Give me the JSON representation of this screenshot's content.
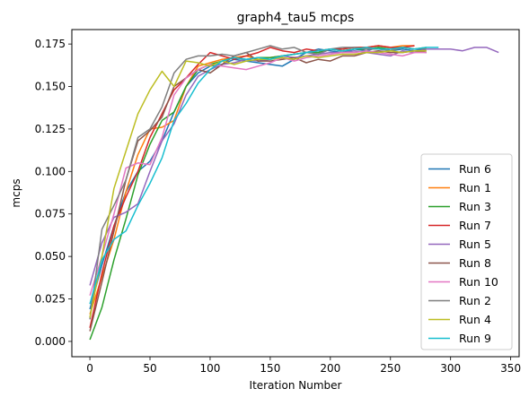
{
  "chart_data": {
    "type": "line",
    "title": "graph4_tau5 mcps",
    "xlabel": "Iteration Number",
    "ylabel": "mcps",
    "xlim": [
      -15,
      357
    ],
    "ylim": [
      -0.009,
      0.1835
    ],
    "xticks": [
      0,
      50,
      100,
      150,
      200,
      250,
      300,
      350
    ],
    "yticks": [
      0.0,
      0.025,
      0.05,
      0.075,
      0.1,
      0.125,
      0.15,
      0.175
    ],
    "xtick_labels": [
      "0",
      "50",
      "100",
      "150",
      "200",
      "250",
      "300",
      "350"
    ],
    "ytick_labels": [
      "0.000",
      "0.025",
      "0.050",
      "0.075",
      "0.100",
      "0.125",
      "0.150",
      "0.175"
    ],
    "legend_position": "lower right",
    "grid": false,
    "series": [
      {
        "name": "Run 6",
        "color": "#1f77b4",
        "x": [
          0,
          10,
          20,
          30,
          40,
          50,
          60,
          70,
          80,
          90,
          100,
          110,
          120,
          130,
          140,
          150,
          160,
          170,
          180,
          190,
          200,
          210,
          220,
          230,
          240,
          250,
          260,
          270,
          280
        ],
        "y": [
          0.019,
          0.045,
          0.068,
          0.088,
          0.1,
          0.106,
          0.118,
          0.135,
          0.15,
          0.158,
          0.162,
          0.163,
          0.166,
          0.165,
          0.164,
          0.163,
          0.162,
          0.166,
          0.17,
          0.172,
          0.171,
          0.17,
          0.172,
          0.171,
          0.173,
          0.171,
          0.172,
          0.171,
          0.172
        ]
      },
      {
        "name": "Run 1",
        "color": "#ff7f0e",
        "x": [
          0,
          10,
          20,
          30,
          40,
          50,
          60,
          70,
          80,
          90,
          100,
          110,
          120,
          130,
          140,
          150,
          160,
          170,
          180,
          190,
          200,
          210,
          220,
          230,
          240,
          250,
          260,
          270
        ],
        "y": [
          0.016,
          0.038,
          0.06,
          0.088,
          0.11,
          0.125,
          0.126,
          0.13,
          0.15,
          0.162,
          0.164,
          0.166,
          0.167,
          0.168,
          0.166,
          0.167,
          0.168,
          0.169,
          0.17,
          0.171,
          0.172,
          0.172,
          0.173,
          0.173,
          0.174,
          0.173,
          0.174,
          0.174
        ]
      },
      {
        "name": "Run 3",
        "color": "#2ca02c",
        "x": [
          0,
          10,
          20,
          30,
          40,
          50,
          60,
          70,
          80,
          90,
          100,
          110,
          120,
          130,
          140,
          150,
          160,
          170,
          180,
          190,
          200,
          210,
          220,
          230,
          240,
          250,
          260,
          270,
          280
        ],
        "y": [
          0.001,
          0.02,
          0.048,
          0.072,
          0.098,
          0.116,
          0.13,
          0.135,
          0.15,
          0.16,
          0.163,
          0.165,
          0.167,
          0.166,
          0.167,
          0.167,
          0.168,
          0.169,
          0.17,
          0.17,
          0.172,
          0.171,
          0.172,
          0.172,
          0.173,
          0.172,
          0.173,
          0.172,
          0.173
        ]
      },
      {
        "name": "Run 7",
        "color": "#d62728",
        "x": [
          0,
          10,
          20,
          30,
          40,
          50,
          60,
          70,
          80,
          90,
          100,
          110,
          120,
          130,
          140,
          150,
          160,
          170,
          180,
          190,
          200,
          210,
          220,
          230,
          240,
          250,
          260,
          270
        ],
        "y": [
          0.008,
          0.04,
          0.068,
          0.085,
          0.1,
          0.12,
          0.134,
          0.148,
          0.155,
          0.163,
          0.17,
          0.168,
          0.166,
          0.168,
          0.17,
          0.173,
          0.171,
          0.17,
          0.172,
          0.171,
          0.172,
          0.172,
          0.173,
          0.173,
          0.174,
          0.173,
          0.173,
          0.174
        ]
      },
      {
        "name": "Run 5",
        "color": "#9467bd",
        "x": [
          0,
          10,
          20,
          30,
          40,
          50,
          60,
          70,
          80,
          90,
          100,
          110,
          120,
          130,
          140,
          150,
          160,
          170,
          180,
          190,
          200,
          210,
          220,
          230,
          240,
          250,
          260,
          270,
          280,
          290,
          300,
          310,
          320,
          330,
          340
        ],
        "y": [
          0.033,
          0.058,
          0.073,
          0.076,
          0.081,
          0.1,
          0.118,
          0.128,
          0.145,
          0.156,
          0.16,
          0.163,
          0.164,
          0.166,
          0.165,
          0.166,
          0.168,
          0.167,
          0.168,
          0.169,
          0.17,
          0.17,
          0.171,
          0.17,
          0.169,
          0.168,
          0.171,
          0.17,
          0.172,
          0.172,
          0.172,
          0.171,
          0.173,
          0.173,
          0.17
        ]
      },
      {
        "name": "Run 8",
        "color": "#8c564b",
        "x": [
          0,
          10,
          20,
          30,
          40,
          50,
          60,
          70,
          80,
          90,
          100,
          110,
          120,
          130,
          140,
          150,
          160,
          170,
          180,
          190,
          200,
          210,
          220,
          230,
          240,
          250,
          260,
          270,
          280
        ],
        "y": [
          0.006,
          0.035,
          0.065,
          0.095,
          0.118,
          0.124,
          0.132,
          0.15,
          0.155,
          0.16,
          0.158,
          0.163,
          0.168,
          0.17,
          0.165,
          0.165,
          0.166,
          0.167,
          0.164,
          0.166,
          0.165,
          0.168,
          0.168,
          0.17,
          0.171,
          0.17,
          0.17,
          0.171,
          0.17
        ]
      },
      {
        "name": "Run 10",
        "color": "#e377c2",
        "x": [
          0,
          10,
          20,
          30,
          40,
          50,
          60,
          70,
          80,
          90,
          100,
          110,
          120,
          130,
          140,
          150,
          160,
          170,
          180,
          190,
          200,
          210,
          220,
          230,
          240,
          250,
          260,
          270,
          280
        ],
        "y": [
          0.027,
          0.05,
          0.075,
          0.102,
          0.105,
          0.104,
          0.12,
          0.145,
          0.155,
          0.16,
          0.163,
          0.162,
          0.161,
          0.16,
          0.162,
          0.164,
          0.167,
          0.165,
          0.167,
          0.168,
          0.169,
          0.17,
          0.17,
          0.171,
          0.17,
          0.169,
          0.168,
          0.17,
          0.17
        ]
      },
      {
        "name": "Run 2",
        "color": "#7f7f7f",
        "x": [
          0,
          10,
          20,
          30,
          40,
          50,
          60,
          70,
          80,
          90,
          100,
          110,
          120,
          130,
          140,
          150,
          160,
          170,
          180,
          190,
          200,
          210,
          220,
          230,
          240,
          250,
          260,
          270,
          280
        ],
        "y": [
          0.013,
          0.066,
          0.08,
          0.095,
          0.12,
          0.125,
          0.138,
          0.158,
          0.166,
          0.168,
          0.168,
          0.169,
          0.168,
          0.17,
          0.172,
          0.174,
          0.172,
          0.173,
          0.17,
          0.169,
          0.172,
          0.173,
          0.173,
          0.172,
          0.172,
          0.171,
          0.173,
          0.172,
          0.172
        ]
      },
      {
        "name": "Run 4",
        "color": "#bcbd22",
        "x": [
          0,
          10,
          20,
          30,
          40,
          50,
          60,
          70,
          80,
          90,
          100,
          110,
          120,
          130,
          140,
          150,
          160,
          170,
          180,
          190,
          200,
          210,
          220,
          230,
          240,
          250,
          260,
          270,
          280
        ],
        "y": [
          0.014,
          0.05,
          0.09,
          0.112,
          0.134,
          0.148,
          0.159,
          0.15,
          0.165,
          0.164,
          0.162,
          0.165,
          0.163,
          0.165,
          0.166,
          0.166,
          0.167,
          0.166,
          0.168,
          0.167,
          0.168,
          0.169,
          0.169,
          0.17,
          0.17,
          0.171,
          0.17,
          0.171,
          0.171
        ]
      },
      {
        "name": "Run 9",
        "color": "#17becf",
        "x": [
          0,
          10,
          20,
          30,
          40,
          50,
          60,
          70,
          80,
          90,
          100,
          110,
          120,
          130,
          140,
          150,
          160,
          170,
          180,
          190,
          200,
          210,
          220,
          230,
          240,
          250,
          260,
          270,
          280,
          290
        ],
        "y": [
          0.022,
          0.048,
          0.06,
          0.065,
          0.08,
          0.093,
          0.108,
          0.13,
          0.14,
          0.152,
          0.16,
          0.165,
          0.167,
          0.166,
          0.167,
          0.166,
          0.168,
          0.169,
          0.17,
          0.171,
          0.172,
          0.171,
          0.172,
          0.173,
          0.172,
          0.172,
          0.173,
          0.172,
          0.173,
          0.173
        ]
      }
    ]
  }
}
